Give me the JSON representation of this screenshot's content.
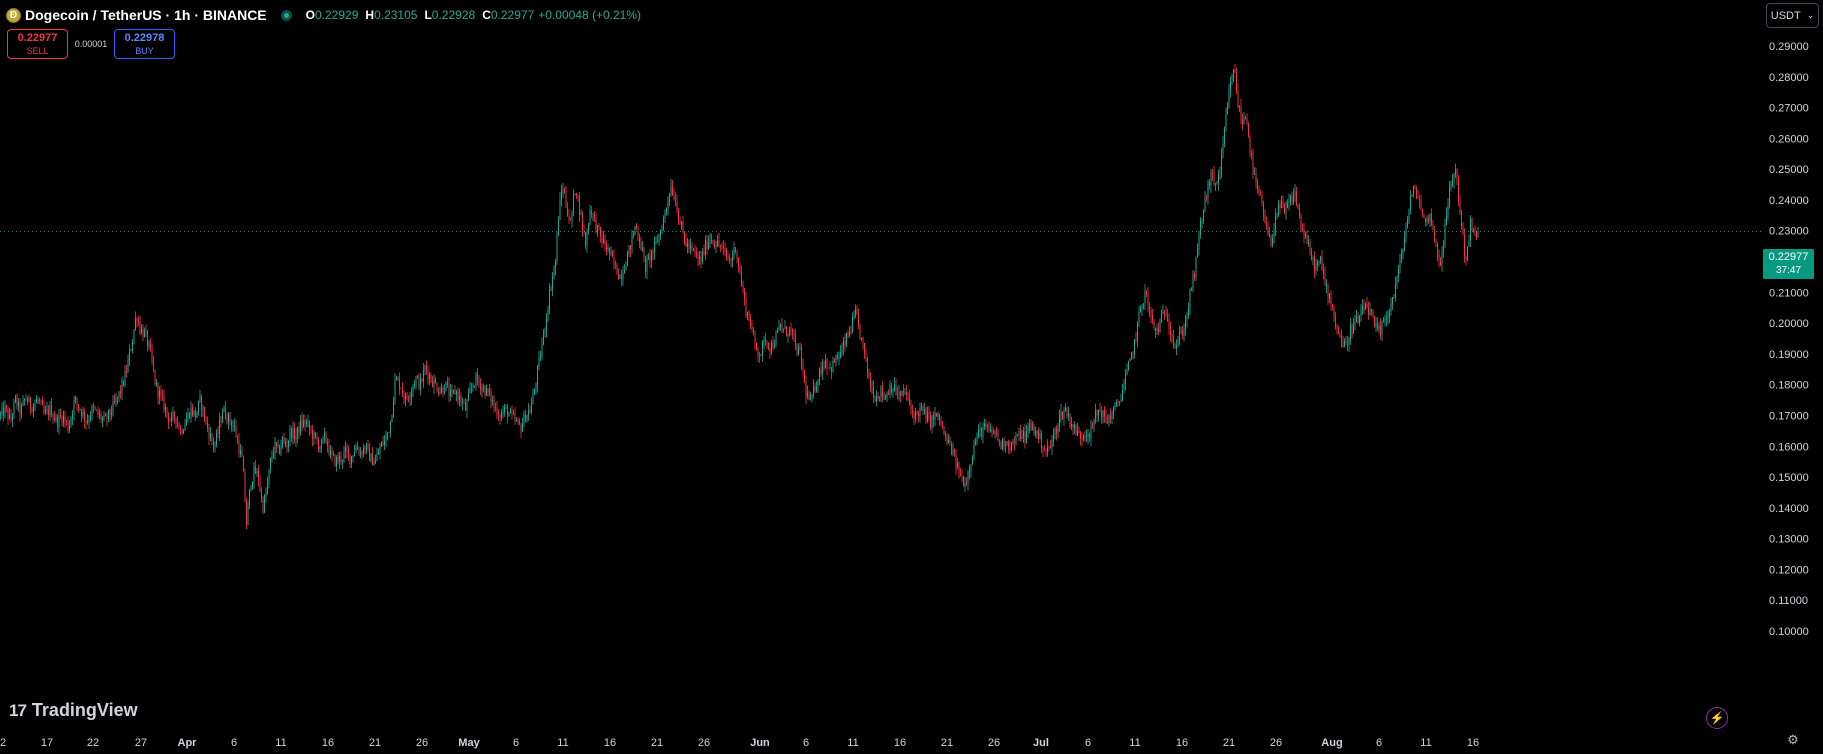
{
  "header": {
    "symbol_title": "Dogecoin / TetherUS · 1h · BINANCE",
    "coin_icon": "dogecoin-coin-icon",
    "ohlc": {
      "o_label": "O",
      "o": "0.22929",
      "h_label": "H",
      "h": "0.23105",
      "l_label": "L",
      "l": "0.22928",
      "c_label": "C",
      "c": "0.22977",
      "change": "+0.00048 (+0.21%)"
    },
    "status_color": "#22ab94"
  },
  "trade": {
    "sell_price": "0.22977",
    "sell_label": "SELL",
    "spread": "0.00001",
    "buy_price": "0.22978",
    "buy_label": "BUY"
  },
  "currency": {
    "label": "USDT"
  },
  "last_price": {
    "price": "0.22977",
    "countdown": "37:47"
  },
  "branding": {
    "logo_text": "TradingView",
    "logo_mark": "17"
  },
  "colors": {
    "up": "#22ab94",
    "down": "#f23645",
    "background": "#000000"
  },
  "chart_data": {
    "type": "candlestick",
    "y_ticks": [
      "0.29000",
      "0.28000",
      "0.27000",
      "0.26000",
      "0.25000",
      "0.24000",
      "0.23000",
      "0.22000",
      "0.21000",
      "0.20000",
      "0.19000",
      "0.18000",
      "0.17000",
      "0.16000",
      "0.15000",
      "0.14000",
      "0.13000",
      "0.12000",
      "0.11000",
      "0.10000"
    ],
    "ylim": [
      0.1,
      0.29
    ],
    "x_ticks": [
      "2",
      "17",
      "22",
      "27",
      "Apr",
      "6",
      "11",
      "16",
      "21",
      "26",
      "May",
      "6",
      "11",
      "16",
      "21",
      "26",
      "Jun",
      "6",
      "11",
      "16",
      "21",
      "26",
      "Jul",
      "6",
      "11",
      "16",
      "21",
      "26",
      "Aug",
      "6",
      "11",
      "16"
    ],
    "last_price_value": 0.22977,
    "price_path": [
      [
        0,
        0.17
      ],
      [
        5,
        0.172
      ],
      [
        10,
        0.168
      ],
      [
        15,
        0.175
      ],
      [
        20,
        0.171
      ],
      [
        25,
        0.176
      ],
      [
        30,
        0.173
      ],
      [
        38,
        0.175
      ],
      [
        44,
        0.17
      ],
      [
        50,
        0.172
      ],
      [
        56,
        0.168
      ],
      [
        62,
        0.17
      ],
      [
        68,
        0.166
      ],
      [
        74,
        0.175
      ],
      [
        80,
        0.172
      ],
      [
        86,
        0.168
      ],
      [
        92,
        0.172
      ],
      [
        98,
        0.17
      ],
      [
        104,
        0.168
      ],
      [
        110,
        0.171
      ],
      [
        116,
        0.175
      ],
      [
        120,
        0.178
      ],
      [
        124,
        0.182
      ],
      [
        128,
        0.188
      ],
      [
        132,
        0.195
      ],
      [
        136,
        0.203
      ],
      [
        140,
        0.198
      ],
      [
        145,
        0.196
      ],
      [
        150,
        0.19
      ],
      [
        155,
        0.18
      ],
      [
        160,
        0.176
      ],
      [
        165,
        0.172
      ],
      [
        170,
        0.168
      ],
      [
        175,
        0.17
      ],
      [
        180,
        0.165
      ],
      [
        185,
        0.168
      ],
      [
        190,
        0.172
      ],
      [
        195,
        0.17
      ],
      [
        200,
        0.175
      ],
      [
        205,
        0.168
      ],
      [
        210,
        0.163
      ],
      [
        214,
        0.16
      ],
      [
        218,
        0.165
      ],
      [
        222,
        0.172
      ],
      [
        226,
        0.17
      ],
      [
        230,
        0.168
      ],
      [
        234,
        0.166
      ],
      [
        238,
        0.16
      ],
      [
        242,
        0.155
      ],
      [
        246,
        0.135
      ],
      [
        250,
        0.148
      ],
      [
        254,
        0.152
      ],
      [
        258,
        0.15
      ],
      [
        262,
        0.14
      ],
      [
        266,
        0.145
      ],
      [
        270,
        0.155
      ],
      [
        274,
        0.16
      ],
      [
        278,
        0.158
      ],
      [
        282,
        0.162
      ],
      [
        286,
        0.16
      ],
      [
        290,
        0.165
      ],
      [
        295,
        0.163
      ],
      [
        300,
        0.167
      ],
      [
        305,
        0.168
      ],
      [
        310,
        0.165
      ],
      [
        315,
        0.162
      ],
      [
        320,
        0.16
      ],
      [
        325,
        0.163
      ],
      [
        330,
        0.157
      ],
      [
        335,
        0.155
      ],
      [
        340,
        0.156
      ],
      [
        345,
        0.158
      ],
      [
        350,
        0.156
      ],
      [
        355,
        0.16
      ],
      [
        360,
        0.158
      ],
      [
        365,
        0.16
      ],
      [
        370,
        0.156
      ],
      [
        375,
        0.155
      ],
      [
        380,
        0.16
      ],
      [
        385,
        0.162
      ],
      [
        390,
        0.168
      ],
      [
        395,
        0.182
      ],
      [
        400,
        0.18
      ],
      [
        405,
        0.175
      ],
      [
        410,
        0.178
      ],
      [
        415,
        0.182
      ],
      [
        420,
        0.18
      ],
      [
        425,
        0.186
      ],
      [
        430,
        0.182
      ],
      [
        435,
        0.18
      ],
      [
        440,
        0.178
      ],
      [
        445,
        0.18
      ],
      [
        450,
        0.176
      ],
      [
        455,
        0.178
      ],
      [
        460,
        0.175
      ],
      [
        465,
        0.172
      ],
      [
        470,
        0.178
      ],
      [
        475,
        0.182
      ],
      [
        480,
        0.18
      ],
      [
        485,
        0.178
      ],
      [
        490,
        0.176
      ],
      [
        495,
        0.172
      ],
      [
        500,
        0.17
      ],
      [
        505,
        0.172
      ],
      [
        510,
        0.17
      ],
      [
        515,
        0.168
      ],
      [
        520,
        0.166
      ],
      [
        525,
        0.17
      ],
      [
        530,
        0.172
      ],
      [
        535,
        0.18
      ],
      [
        540,
        0.19
      ],
      [
        545,
        0.2
      ],
      [
        550,
        0.212
      ],
      [
        555,
        0.22
      ],
      [
        558,
        0.235
      ],
      [
        562,
        0.245
      ],
      [
        566,
        0.238
      ],
      [
        570,
        0.232
      ],
      [
        575,
        0.245
      ],
      [
        580,
        0.235
      ],
      [
        585,
        0.226
      ],
      [
        590,
        0.238
      ],
      [
        595,
        0.232
      ],
      [
        600,
        0.228
      ],
      [
        605,
        0.225
      ],
      [
        610,
        0.222
      ],
      [
        615,
        0.218
      ],
      [
        620,
        0.215
      ],
      [
        625,
        0.22
      ],
      [
        630,
        0.225
      ],
      [
        635,
        0.232
      ],
      [
        640,
        0.226
      ],
      [
        645,
        0.218
      ],
      [
        650,
        0.222
      ],
      [
        655,
        0.225
      ],
      [
        660,
        0.23
      ],
      [
        665,
        0.236
      ],
      [
        670,
        0.245
      ],
      [
        675,
        0.24
      ],
      [
        680,
        0.232
      ],
      [
        685,
        0.226
      ],
      [
        690,
        0.224
      ],
      [
        695,
        0.222
      ],
      [
        700,
        0.22
      ],
      [
        705,
        0.225
      ],
      [
        710,
        0.228
      ],
      [
        715,
        0.226
      ],
      [
        720,
        0.225
      ],
      [
        725,
        0.222
      ],
      [
        730,
        0.22
      ],
      [
        735,
        0.225
      ],
      [
        740,
        0.215
      ],
      [
        745,
        0.205
      ],
      [
        750,
        0.2
      ],
      [
        755,
        0.192
      ],
      [
        760,
        0.19
      ],
      [
        765,
        0.195
      ],
      [
        770,
        0.192
      ],
      [
        775,
        0.195
      ],
      [
        780,
        0.199
      ],
      [
        785,
        0.197
      ],
      [
        790,
        0.198
      ],
      [
        795,
        0.192
      ],
      [
        800,
        0.19
      ],
      [
        805,
        0.178
      ],
      [
        810,
        0.174
      ],
      [
        815,
        0.18
      ],
      [
        820,
        0.185
      ],
      [
        825,
        0.188
      ],
      [
        830,
        0.185
      ],
      [
        835,
        0.188
      ],
      [
        840,
        0.19
      ],
      [
        845,
        0.194
      ],
      [
        850,
        0.198
      ],
      [
        855,
        0.203
      ],
      [
        860,
        0.196
      ],
      [
        865,
        0.188
      ],
      [
        870,
        0.18
      ],
      [
        875,
        0.176
      ],
      [
        880,
        0.178
      ],
      [
        885,
        0.176
      ],
      [
        890,
        0.18
      ],
      [
        895,
        0.178
      ],
      [
        900,
        0.176
      ],
      [
        905,
        0.178
      ],
      [
        910,
        0.172
      ],
      [
        915,
        0.17
      ],
      [
        920,
        0.172
      ],
      [
        925,
        0.17
      ],
      [
        930,
        0.168
      ],
      [
        935,
        0.17
      ],
      [
        940,
        0.168
      ],
      [
        945,
        0.162
      ],
      [
        950,
        0.16
      ],
      [
        955,
        0.155
      ],
      [
        960,
        0.15
      ],
      [
        965,
        0.148
      ],
      [
        970,
        0.155
      ],
      [
        975,
        0.162
      ],
      [
        980,
        0.165
      ],
      [
        985,
        0.166
      ],
      [
        990,
        0.164
      ],
      [
        995,
        0.165
      ],
      [
        1000,
        0.16
      ],
      [
        1005,
        0.162
      ],
      [
        1010,
        0.16
      ],
      [
        1015,
        0.162
      ],
      [
        1020,
        0.164
      ],
      [
        1025,
        0.163
      ],
      [
        1030,
        0.167
      ],
      [
        1035,
        0.165
      ],
      [
        1040,
        0.162
      ],
      [
        1045,
        0.158
      ],
      [
        1050,
        0.16
      ],
      [
        1055,
        0.165
      ],
      [
        1060,
        0.17
      ],
      [
        1065,
        0.172
      ],
      [
        1070,
        0.168
      ],
      [
        1075,
        0.165
      ],
      [
        1080,
        0.163
      ],
      [
        1085,
        0.165
      ],
      [
        1090,
        0.164
      ],
      [
        1095,
        0.17
      ],
      [
        1100,
        0.172
      ],
      [
        1105,
        0.168
      ],
      [
        1110,
        0.17
      ],
      [
        1115,
        0.172
      ],
      [
        1120,
        0.176
      ],
      [
        1125,
        0.182
      ],
      [
        1130,
        0.188
      ],
      [
        1135,
        0.195
      ],
      [
        1140,
        0.205
      ],
      [
        1145,
        0.21
      ],
      [
        1150,
        0.202
      ],
      [
        1155,
        0.197
      ],
      [
        1160,
        0.2
      ],
      [
        1165,
        0.205
      ],
      [
        1170,
        0.198
      ],
      [
        1175,
        0.192
      ],
      [
        1180,
        0.196
      ],
      [
        1185,
        0.2
      ],
      [
        1190,
        0.21
      ],
      [
        1195,
        0.218
      ],
      [
        1200,
        0.232
      ],
      [
        1205,
        0.24
      ],
      [
        1210,
        0.248
      ],
      [
        1215,
        0.245
      ],
      [
        1220,
        0.25
      ],
      [
        1225,
        0.265
      ],
      [
        1230,
        0.278
      ],
      [
        1234,
        0.282
      ],
      [
        1238,
        0.27
      ],
      [
        1242,
        0.265
      ],
      [
        1246,
        0.268
      ],
      [
        1250,
        0.255
      ],
      [
        1255,
        0.245
      ],
      [
        1260,
        0.24
      ],
      [
        1265,
        0.232
      ],
      [
        1270,
        0.225
      ],
      [
        1275,
        0.235
      ],
      [
        1280,
        0.238
      ],
      [
        1285,
        0.236
      ],
      [
        1290,
        0.24
      ],
      [
        1295,
        0.242
      ],
      [
        1300,
        0.232
      ],
      [
        1305,
        0.228
      ],
      [
        1310,
        0.222
      ],
      [
        1315,
        0.218
      ],
      [
        1320,
        0.22
      ],
      [
        1325,
        0.212
      ],
      [
        1330,
        0.208
      ],
      [
        1335,
        0.2
      ],
      [
        1340,
        0.195
      ],
      [
        1345,
        0.192
      ],
      [
        1350,
        0.198
      ],
      [
        1355,
        0.2
      ],
      [
        1360,
        0.202
      ],
      [
        1365,
        0.206
      ],
      [
        1370,
        0.203
      ],
      [
        1375,
        0.198
      ],
      [
        1380,
        0.197
      ],
      [
        1385,
        0.202
      ],
      [
        1390,
        0.205
      ],
      [
        1395,
        0.212
      ],
      [
        1400,
        0.22
      ],
      [
        1405,
        0.23
      ],
      [
        1410,
        0.24
      ],
      [
        1415,
        0.244
      ],
      [
        1420,
        0.238
      ],
      [
        1425,
        0.232
      ],
      [
        1430,
        0.236
      ],
      [
        1435,
        0.225
      ],
      [
        1440,
        0.22
      ],
      [
        1445,
        0.232
      ],
      [
        1450,
        0.245
      ],
      [
        1455,
        0.25
      ],
      [
        1460,
        0.235
      ],
      [
        1465,
        0.22
      ],
      [
        1470,
        0.232
      ],
      [
        1475,
        0.228
      ],
      [
        1478,
        0.2298
      ]
    ]
  }
}
